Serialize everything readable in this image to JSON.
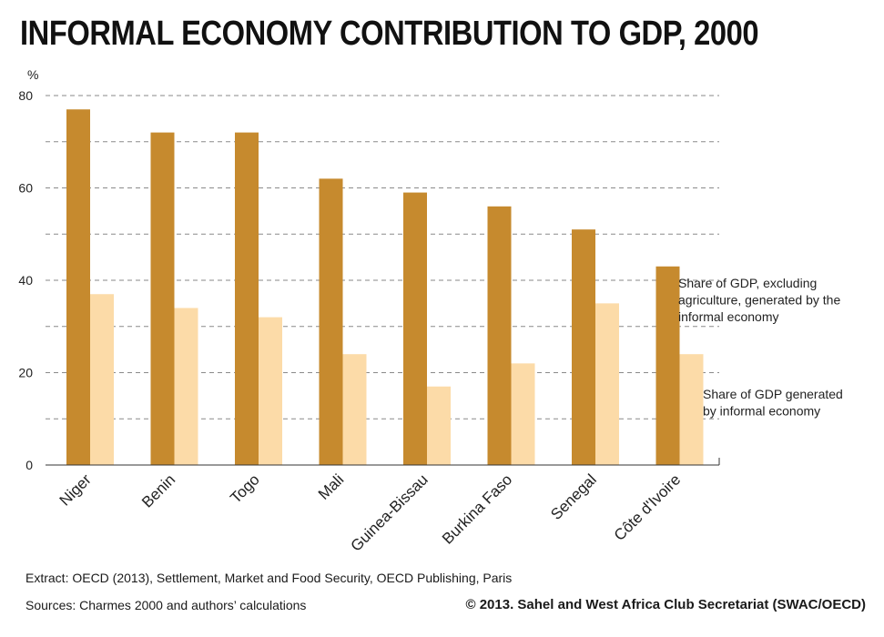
{
  "title": "INFORMAL ECONOMY CONTRIBUTION TO GDP, 2000",
  "chart_data": {
    "type": "bar",
    "ylabel": "%",
    "ylim": [
      0,
      80
    ],
    "yticks": [
      "0",
      "20",
      "40",
      "60",
      "80"
    ],
    "grid": true,
    "categories": [
      "Niger",
      "Benin",
      "Togo",
      "Mali",
      "Guinea-Bissau",
      "Burkina Faso",
      "Senegal",
      "Côte d'Ivoire"
    ],
    "series": [
      {
        "name": "Share of GDP, excluding agriculture, generated by the informal economy",
        "legend_lines": [
          "Share of GDP, excluding",
          "agriculture, generated by the",
          "informal economy"
        ],
        "color": "#c68a2e",
        "values": [
          77,
          72,
          72,
          62,
          59,
          56,
          51,
          43
        ]
      },
      {
        "name": "Share of GDP generated by informal economy",
        "legend_lines": [
          "Share of GDP generated",
          "by informal economy"
        ],
        "color": "#fcdba8",
        "values": [
          37,
          34,
          32,
          24,
          17,
          22,
          35,
          24
        ]
      }
    ]
  },
  "footer": {
    "extract": "Extract: OECD (2013), Settlement, Market and Food Security, OECD Publishing, Paris",
    "sources": "Sources: Charmes 2000 and authors’ calculations",
    "copyright": "© 2013. Sahel and West Africa Club Secretariat (SWAC/OECD)"
  }
}
